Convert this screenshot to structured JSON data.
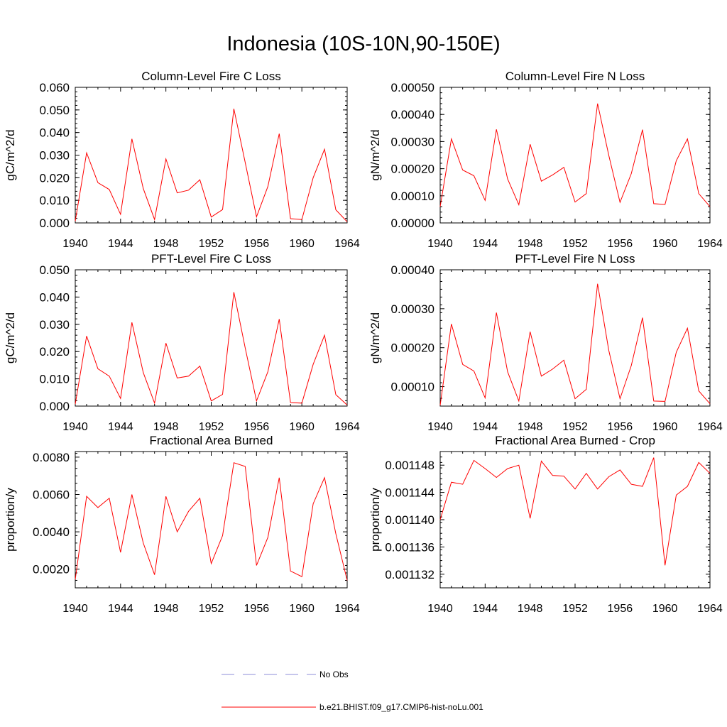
{
  "title": "Indonesia (10S-10N,90-150E)",
  "legend": {
    "items": [
      {
        "label": "No Obs",
        "color": "#8c8cd9",
        "style": "dashed"
      },
      {
        "label": "b.e21.BHIST.f09_g17.CMIP6-hist-noLu.001",
        "color": "#ff0000",
        "style": "solid"
      }
    ]
  },
  "chart_data": [
    {
      "type": "line",
      "title": "Column-Level Fire C Loss",
      "ylabel": "gC/m^2/d",
      "xlim": [
        1940,
        1964
      ],
      "ylim": [
        0,
        0.06
      ],
      "x_ticks": [
        "1940",
        "1944",
        "1948",
        "1952",
        "1956",
        "1960",
        "1964"
      ],
      "y_ticks": [
        "0.000",
        "0.010",
        "0.020",
        "0.030",
        "0.040",
        "0.050",
        "0.060"
      ],
      "x": [
        1940,
        1941,
        1942,
        1943,
        1944,
        1945,
        1946,
        1947,
        1948,
        1949,
        1950,
        1951,
        1952,
        1953,
        1954,
        1955,
        1956,
        1957,
        1958,
        1959,
        1960,
        1961,
        1962,
        1963,
        1964
      ],
      "series": [
        {
          "color": "#ff0000",
          "values": [
            0.0008,
            0.031,
            0.0178,
            0.0148,
            0.0038,
            0.0372,
            0.0152,
            0.0015,
            0.0283,
            0.0133,
            0.0145,
            0.0191,
            0.0026,
            0.0059,
            0.0505,
            0.0267,
            0.0027,
            0.0161,
            0.0395,
            0.0019,
            0.0015,
            0.02,
            0.0326,
            0.0058,
            0.0005
          ]
        }
      ]
    },
    {
      "type": "line",
      "title": "Column-Level Fire N Loss",
      "ylabel": "gN/m^2/d",
      "xlim": [
        1940,
        1964
      ],
      "ylim": [
        0,
        0.0005
      ],
      "x_ticks": [
        "1940",
        "1944",
        "1948",
        "1952",
        "1956",
        "1960",
        "1964"
      ],
      "y_ticks": [
        "0.00000",
        "0.00010",
        "0.00020",
        "0.00030",
        "0.00040",
        "0.00050"
      ],
      "x": [
        1940,
        1941,
        1942,
        1943,
        1944,
        1945,
        1946,
        1947,
        1948,
        1949,
        1950,
        1951,
        1952,
        1953,
        1954,
        1955,
        1956,
        1957,
        1958,
        1959,
        1960,
        1961,
        1962,
        1963,
        1964
      ],
      "series": [
        {
          "color": "#ff0000",
          "values": [
            6e-05,
            0.00031,
            0.000195,
            0.000174,
            8.3e-05,
            0.000345,
            0.000162,
            6.7e-05,
            0.00029,
            0.000154,
            0.000177,
            0.000205,
            7.7e-05,
            0.000108,
            0.00044,
            0.000249,
            7.6e-05,
            0.000182,
            0.000344,
            7.1e-05,
            6.8e-05,
            0.000229,
            0.00031,
            0.000108,
            6e-05
          ]
        }
      ]
    },
    {
      "type": "line",
      "title": "PFT-Level Fire C Loss",
      "ylabel": "gC/m^2/d",
      "xlim": [
        1940,
        1964
      ],
      "ylim": [
        0,
        0.05
      ],
      "x_ticks": [
        "1940",
        "1944",
        "1948",
        "1952",
        "1956",
        "1960",
        "1964"
      ],
      "y_ticks": [
        "0.000",
        "0.010",
        "0.020",
        "0.030",
        "0.040",
        "0.050"
      ],
      "x": [
        1940,
        1941,
        1942,
        1943,
        1944,
        1945,
        1946,
        1947,
        1948,
        1949,
        1950,
        1951,
        1952,
        1953,
        1954,
        1955,
        1956,
        1957,
        1958,
        1959,
        1960,
        1961,
        1962,
        1963,
        1964
      ],
      "series": [
        {
          "color": "#ff0000",
          "values": [
            0.0007,
            0.0257,
            0.0137,
            0.011,
            0.0028,
            0.0307,
            0.0123,
            0.0011,
            0.0231,
            0.0103,
            0.011,
            0.0147,
            0.0019,
            0.0043,
            0.0418,
            0.0213,
            0.0019,
            0.0126,
            0.0319,
            0.0013,
            0.0011,
            0.0153,
            0.026,
            0.0042,
            0.0004
          ]
        }
      ]
    },
    {
      "type": "line",
      "title": "PFT-Level Fire N Loss",
      "ylabel": "gN/m^2/d",
      "xlim": [
        1940,
        1964
      ],
      "ylim": [
        5e-05,
        0.0004
      ],
      "x_ticks": [
        "1940",
        "1944",
        "1948",
        "1952",
        "1956",
        "1960",
        "1964"
      ],
      "y_ticks": [
        "",
        "0.00010",
        "0.00020",
        "0.00030",
        "0.00040"
      ],
      "y_tick_values": [
        5e-05,
        0.0001,
        0.0002,
        0.0003,
        0.0004
      ],
      "x": [
        1940,
        1941,
        1942,
        1943,
        1944,
        1945,
        1946,
        1947,
        1948,
        1949,
        1950,
        1951,
        1952,
        1953,
        1954,
        1955,
        1956,
        1957,
        1958,
        1959,
        1960,
        1961,
        1962,
        1963,
        1964
      ],
      "series": [
        {
          "color": "#ff0000",
          "values": [
            5.2e-05,
            0.000261,
            0.000157,
            0.00014,
            7.1e-05,
            0.00029,
            0.000138,
            6.3e-05,
            0.000241,
            0.000127,
            0.000145,
            0.000168,
            6.9e-05,
            9.3e-05,
            0.000364,
            0.000193,
            6.9e-05,
            0.000154,
            0.000277,
            6.3e-05,
            6.2e-05,
            0.000188,
            0.00025,
            8.9e-05,
            5.6e-05
          ]
        }
      ]
    },
    {
      "type": "line",
      "title": "Fractional Area Burned",
      "ylabel": "proportion/y",
      "xlim": [
        1940,
        1964
      ],
      "ylim": [
        0.001,
        0.0083
      ],
      "x_ticks": [
        "1940",
        "1944",
        "1948",
        "1952",
        "1956",
        "1960",
        "1964"
      ],
      "y_ticks": [
        "0.0020",
        "0.0040",
        "0.0060",
        "0.0080"
      ],
      "y_tick_values": [
        0.002,
        0.004,
        0.006,
        0.008
      ],
      "x": [
        1940,
        1941,
        1942,
        1943,
        1944,
        1945,
        1946,
        1947,
        1948,
        1949,
        1950,
        1951,
        1952,
        1953,
        1954,
        1955,
        1956,
        1957,
        1958,
        1959,
        1960,
        1961,
        1962,
        1963,
        1964
      ],
      "series": [
        {
          "color": "#ff0000",
          "values": [
            0.00145,
            0.0059,
            0.0053,
            0.0058,
            0.0029,
            0.006,
            0.0034,
            0.0017,
            0.0059,
            0.004,
            0.0051,
            0.0058,
            0.0023,
            0.0038,
            0.0077,
            0.0075,
            0.0022,
            0.0037,
            0.0069,
            0.0019,
            0.0016,
            0.0055,
            0.0069,
            0.0039,
            0.0014
          ]
        }
      ]
    },
    {
      "type": "line",
      "title": "Fractional Area Burned - Crop",
      "ylabel": "proportion/y",
      "xlim": [
        1940,
        1964
      ],
      "ylim": [
        0.00113,
        0.00115
      ],
      "x_ticks": [
        "1940",
        "1944",
        "1948",
        "1952",
        "1956",
        "1960",
        "1964"
      ],
      "y_ticks": [
        "0.001132",
        "0.001136",
        "0.001140",
        "0.001144",
        "0.001148"
      ],
      "y_tick_values": [
        0.001132,
        0.001136,
        0.00114,
        0.001144,
        0.001148
      ],
      "x": [
        1940,
        1941,
        1942,
        1943,
        1944,
        1945,
        1946,
        1947,
        1948,
        1949,
        1950,
        1951,
        1952,
        1953,
        1954,
        1955,
        1956,
        1957,
        1958,
        1959,
        1960,
        1961,
        1962,
        1963,
        1964
      ],
      "series": [
        {
          "color": "#ff0000",
          "values": [
            0.00114,
            0.0011455,
            0.0011452,
            0.0011487,
            0.0011475,
            0.0011462,
            0.0011475,
            0.001148,
            0.0011402,
            0.0011486,
            0.0011465,
            0.0011464,
            0.0011445,
            0.0011468,
            0.0011445,
            0.0011463,
            0.0011473,
            0.0011452,
            0.0011449,
            0.0011491,
            0.0011333,
            0.0011436,
            0.0011449,
            0.0011484,
            0.0011468
          ]
        }
      ]
    }
  ]
}
